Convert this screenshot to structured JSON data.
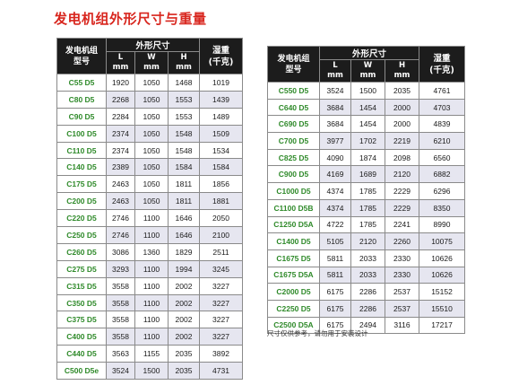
{
  "title": "发电机组外形尺寸与重量",
  "headers": {
    "model_line1": "发电机组",
    "model_line2": "型号",
    "dims_group": "外形尺寸",
    "L": "L",
    "W": "W",
    "H": "H",
    "unit": "mm",
    "weight_line1": "湿重",
    "weight_line2": "(千克)"
  },
  "left_table": [
    {
      "model": "C55 D5",
      "L": "1920",
      "W": "1050",
      "H": "1468",
      "weight": "1019"
    },
    {
      "model": "C80 D5",
      "L": "2268",
      "W": "1050",
      "H": "1553",
      "weight": "1439"
    },
    {
      "model": "C90 D5",
      "L": "2284",
      "W": "1050",
      "H": "1553",
      "weight": "1489"
    },
    {
      "model": "C100 D5",
      "L": "2374",
      "W": "1050",
      "H": "1548",
      "weight": "1509"
    },
    {
      "model": "C110 D5",
      "L": "2374",
      "W": "1050",
      "H": "1548",
      "weight": "1534"
    },
    {
      "model": "C140 D5",
      "L": "2389",
      "W": "1050",
      "H": "1584",
      "weight": "1584"
    },
    {
      "model": "C175 D5",
      "L": "2463",
      "W": "1050",
      "H": "1811",
      "weight": "1856"
    },
    {
      "model": "C200 D5",
      "L": "2463",
      "W": "1050",
      "H": "1811",
      "weight": "1881"
    },
    {
      "model": "C220 D5",
      "L": "2746",
      "W": "1100",
      "H": "1646",
      "weight": "2050"
    },
    {
      "model": "C250 D5",
      "L": "2746",
      "W": "1100",
      "H": "1646",
      "weight": "2100"
    },
    {
      "model": "C260 D5",
      "L": "3086",
      "W": "1360",
      "H": "1829",
      "weight": "2511"
    },
    {
      "model": "C275 D5",
      "L": "3293",
      "W": "1100",
      "H": "1994",
      "weight": "3245"
    },
    {
      "model": "C315 D5",
      "L": "3558",
      "W": "1100",
      "H": "2002",
      "weight": "3227"
    },
    {
      "model": "C350 D5",
      "L": "3558",
      "W": "1100",
      "H": "2002",
      "weight": "3227"
    },
    {
      "model": "C375 D5",
      "L": "3558",
      "W": "1100",
      "H": "2002",
      "weight": "3227"
    },
    {
      "model": "C400 D5",
      "L": "3558",
      "W": "1100",
      "H": "2002",
      "weight": "3227"
    },
    {
      "model": "C440 D5",
      "L": "3563",
      "W": "1155",
      "H": "2035",
      "weight": "3892"
    },
    {
      "model": "C500 D5e",
      "L": "3524",
      "W": "1500",
      "H": "2035",
      "weight": "4731"
    }
  ],
  "right_table": [
    {
      "model": "C550 D5",
      "L": "3524",
      "W": "1500",
      "H": "2035",
      "weight": "4761"
    },
    {
      "model": "C640 D5",
      "L": "3684",
      "W": "1454",
      "H": "2000",
      "weight": "4703"
    },
    {
      "model": "C690 D5",
      "L": "3684",
      "W": "1454",
      "H": "2000",
      "weight": "4839"
    },
    {
      "model": "C700 D5",
      "L": "3977",
      "W": "1702",
      "H": "2219",
      "weight": "6210"
    },
    {
      "model": "C825 D5",
      "L": "4090",
      "W": "1874",
      "H": "2098",
      "weight": "6560"
    },
    {
      "model": "C900 D5",
      "L": "4169",
      "W": "1689",
      "H": "2120",
      "weight": "6882"
    },
    {
      "model": "C1000 D5",
      "L": "4374",
      "W": "1785",
      "H": "2229",
      "weight": "6296"
    },
    {
      "model": "C1100 D5B",
      "L": "4374",
      "W": "1785",
      "H": "2229",
      "weight": "8350"
    },
    {
      "model": "C1250 D5A",
      "L": "4722",
      "W": "1785",
      "H": "2241",
      "weight": "8990"
    },
    {
      "model": "C1400 D5",
      "L": "5105",
      "W": "2120",
      "H": "2260",
      "weight": "10075"
    },
    {
      "model": "C1675 D5",
      "L": "5811",
      "W": "2033",
      "H": "2330",
      "weight": "10626"
    },
    {
      "model": "C1675 D5A",
      "L": "5811",
      "W": "2033",
      "H": "2330",
      "weight": "10626"
    },
    {
      "model": "C2000 D5",
      "L": "6175",
      "W": "2286",
      "H": "2537",
      "weight": "15152"
    },
    {
      "model": "C2250 D5",
      "L": "6175",
      "W": "2286",
      "H": "2537",
      "weight": "15510"
    },
    {
      "model": "C2500 D5A",
      "L": "6175",
      "W": "2494",
      "H": "3116",
      "weight": "17217"
    }
  ],
  "note": "尺寸仅供参考，请勿用于安装设计"
}
